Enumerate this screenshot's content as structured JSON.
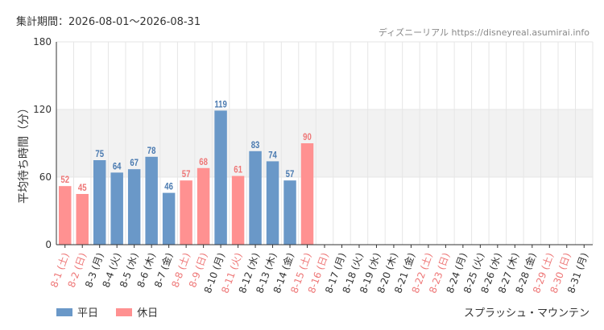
{
  "header": {
    "period": "集計期間：2026-08-01～2026-08-31",
    "credit": "ディズニーリアル https://disneyreal.asumirai.info"
  },
  "footer": {
    "attraction": "スプラッシュ・マウンテン"
  },
  "legend": [
    {
      "label": "平日",
      "color": "#6a98c8"
    },
    {
      "label": "休日",
      "color": "#ff9191"
    }
  ],
  "chart_data": {
    "type": "bar",
    "ylabel": "平均待ち時間（分）",
    "ylim": [
      0,
      180
    ],
    "yticks": [
      0,
      60,
      120,
      180
    ],
    "highlight_band": [
      60,
      120
    ],
    "grid": true,
    "legend_position": "bottom-left",
    "categories": [
      "8-1 (土)",
      "8-2 (日)",
      "8-3 (月)",
      "8-4 (火)",
      "8-5 (水)",
      "8-6 (木)",
      "8-7 (金)",
      "8-8 (土)",
      "8-9 (日)",
      "8-10 (月)",
      "8-11 (火)",
      "8-12 (水)",
      "8-13 (木)",
      "8-14 (金)",
      "8-15 (土)",
      "8-16 (日)",
      "8-17 (月)",
      "8-18 (火)",
      "8-19 (水)",
      "8-20 (木)",
      "8-21 (金)",
      "8-22 (土)",
      "8-23 (日)",
      "8-24 (月)",
      "8-25 (火)",
      "8-26 (水)",
      "8-27 (木)",
      "8-28 (金)",
      "8-29 (土)",
      "8-30 (日)",
      "8-31 (月)"
    ],
    "day_type": [
      "休日",
      "休日",
      "平日",
      "平日",
      "平日",
      "平日",
      "平日",
      "休日",
      "休日",
      "平日",
      "休日",
      "平日",
      "平日",
      "平日",
      "休日",
      "休日",
      "平日",
      "平日",
      "平日",
      "平日",
      "平日",
      "休日",
      "休日",
      "平日",
      "平日",
      "平日",
      "平日",
      "平日",
      "休日",
      "休日",
      "平日"
    ],
    "values": [
      52,
      45,
      75,
      64,
      67,
      78,
      46,
      57,
      68,
      119,
      61,
      83,
      74,
      57,
      90,
      null,
      null,
      null,
      null,
      null,
      null,
      null,
      null,
      null,
      null,
      null,
      null,
      null,
      null,
      null,
      null
    ],
    "colors": {
      "weekday_bar": "#6a98c8",
      "holiday_bar": "#ff9191",
      "weekday_text": "#4a7ab0",
      "holiday_text": "#ee7777",
      "band": "#f2f2f2",
      "grid": "#e6e6e6",
      "axis": "#333333"
    }
  }
}
